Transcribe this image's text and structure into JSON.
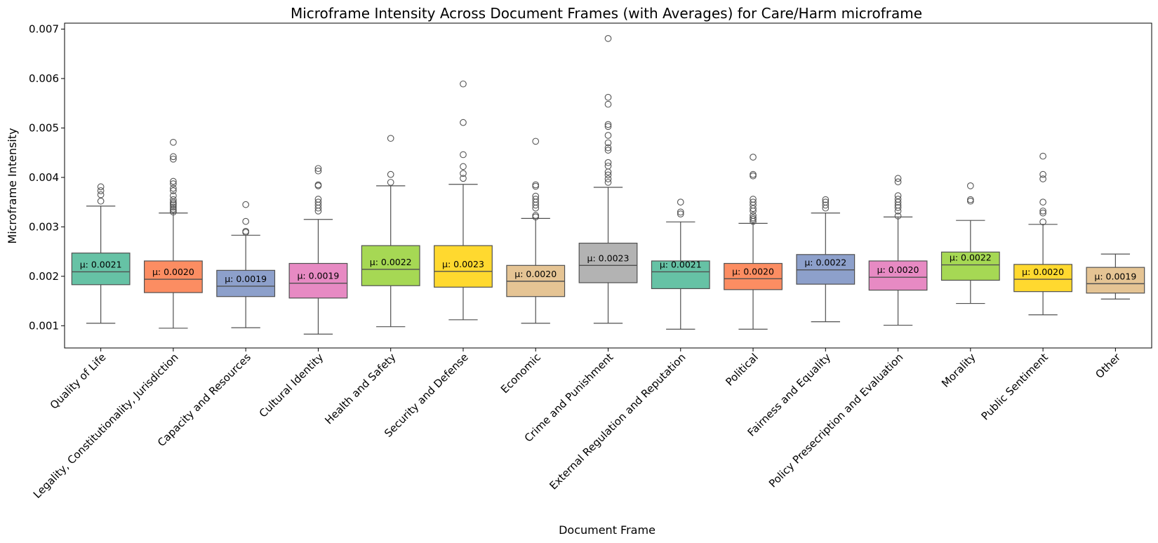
{
  "chart_data": {
    "type": "box",
    "title": "Microframe Intensity Across Document Frames (with Averages) for Care/Harm microframe",
    "xlabel": "Document Frame",
    "ylabel": "Microframe Intensity",
    "ylim": [
      0.00055,
      0.00712
    ],
    "yticks": [
      0.001,
      0.002,
      0.003,
      0.004,
      0.005,
      0.006,
      0.007
    ],
    "ytick_labels": [
      "0.001",
      "0.002",
      "0.003",
      "0.004",
      "0.005",
      "0.006",
      "0.007"
    ],
    "mean_prefix": "μ: ",
    "grid": false,
    "legend": "none",
    "categories": [
      {
        "name": "Quality of Life",
        "color": "#66c2a5",
        "whisker_low": 0.00105,
        "q1": 0.00183,
        "median": 0.00209,
        "q3": 0.00247,
        "whisker_high": 0.00342,
        "mean_label": "0.0021",
        "outliers": [
          0.00352,
          0.00365,
          0.00373,
          0.00381
        ]
      },
      {
        "name": "Legality, Constitutionality, Jurisdiction",
        "color": "#fc8d62",
        "whisker_low": 0.00095,
        "q1": 0.00167,
        "median": 0.00194,
        "q3": 0.00231,
        "whisker_high": 0.00328,
        "mean_label": "0.0020",
        "outliers": [
          0.0033,
          0.00333,
          0.00336,
          0.0034,
          0.00344,
          0.00347,
          0.0035,
          0.00355,
          0.00363,
          0.00373,
          0.00378,
          0.00387,
          0.00392,
          0.00437,
          0.00442,
          0.00471
        ]
      },
      {
        "name": "Capacity and Resources",
        "color": "#8da0cb",
        "whisker_low": 0.00096,
        "q1": 0.00159,
        "median": 0.0018,
        "q3": 0.00212,
        "whisker_high": 0.00283,
        "mean_label": "0.0019",
        "outliers": [
          0.00289,
          0.00291,
          0.00311,
          0.00345
        ]
      },
      {
        "name": "Cultural Identity",
        "color": "#e78ac3",
        "whisker_low": 0.00083,
        "q1": 0.00156,
        "median": 0.00186,
        "q3": 0.00226,
        "whisker_high": 0.00315,
        "mean_label": "0.0019",
        "outliers": [
          0.00332,
          0.00338,
          0.00344,
          0.0035,
          0.00356,
          0.00383,
          0.00385,
          0.00413,
          0.00418
        ]
      },
      {
        "name": "Health and Safety",
        "color": "#a6d854",
        "whisker_low": 0.00098,
        "q1": 0.00181,
        "median": 0.00214,
        "q3": 0.00262,
        "whisker_high": 0.00383,
        "mean_label": "0.0022",
        "outliers": [
          0.0039,
          0.00406,
          0.00479
        ]
      },
      {
        "name": "Security and Defense",
        "color": "#ffd92f",
        "whisker_low": 0.00112,
        "q1": 0.00178,
        "median": 0.0021,
        "q3": 0.00262,
        "whisker_high": 0.00386,
        "mean_label": "0.0023",
        "outliers": [
          0.00398,
          0.00408,
          0.00422,
          0.00446,
          0.00511,
          0.00589
        ]
      },
      {
        "name": "Economic",
        "color": "#e5c494",
        "whisker_low": 0.00105,
        "q1": 0.00159,
        "median": 0.0019,
        "q3": 0.00222,
        "whisker_high": 0.00317,
        "mean_label": "0.0020",
        "outliers": [
          0.0032,
          0.00323,
          0.00338,
          0.00344,
          0.0035,
          0.00356,
          0.00362,
          0.00382,
          0.00385,
          0.00473
        ]
      },
      {
        "name": "Crime and Punishment",
        "color": "#b3b3b3",
        "whisker_low": 0.00105,
        "q1": 0.00187,
        "median": 0.00222,
        "q3": 0.00267,
        "whisker_high": 0.0038,
        "mean_label": "0.0023",
        "outliers": [
          0.0039,
          0.00397,
          0.00405,
          0.00411,
          0.00423,
          0.0043,
          0.00455,
          0.0046,
          0.0047,
          0.00485,
          0.00503,
          0.00507,
          0.00548,
          0.00562,
          0.00681
        ]
      },
      {
        "name": "External Regulation and Reputation",
        "color": "#66c2a5",
        "whisker_low": 0.00093,
        "q1": 0.00175,
        "median": 0.00209,
        "q3": 0.00231,
        "whisker_high": 0.0031,
        "mean_label": "0.0021",
        "outliers": [
          0.00326,
          0.0033,
          0.0035
        ]
      },
      {
        "name": "Political",
        "color": "#fc8d62",
        "whisker_low": 0.00093,
        "q1": 0.00173,
        "median": 0.00195,
        "q3": 0.00226,
        "whisker_high": 0.00307,
        "mean_label": "0.0020",
        "outliers": [
          0.00311,
          0.00315,
          0.00318,
          0.00323,
          0.00332,
          0.00337,
          0.00344,
          0.0035,
          0.00356,
          0.00403,
          0.00406,
          0.00441
        ]
      },
      {
        "name": "Fairness and Equality",
        "color": "#8da0cb",
        "whisker_low": 0.00108,
        "q1": 0.00184,
        "median": 0.00213,
        "q3": 0.00244,
        "whisker_high": 0.00328,
        "mean_label": "0.0022",
        "outliers": [
          0.00338,
          0.00344,
          0.0035,
          0.00355
        ]
      },
      {
        "name": "Policy Presecription and Evaluation",
        "color": "#e78ac3",
        "whisker_low": 0.00101,
        "q1": 0.00172,
        "median": 0.00198,
        "q3": 0.00231,
        "whisker_high": 0.0032,
        "mean_label": "0.0020",
        "outliers": [
          0.00322,
          0.00332,
          0.00339,
          0.00344,
          0.0035,
          0.00356,
          0.00363,
          0.00391,
          0.00398
        ]
      },
      {
        "name": "Morality",
        "color": "#a6d854",
        "whisker_low": 0.00145,
        "q1": 0.00192,
        "median": 0.00223,
        "q3": 0.00249,
        "whisker_high": 0.00313,
        "mean_label": "0.0022",
        "outliers": [
          0.00352,
          0.00355,
          0.00383
        ]
      },
      {
        "name": "Public Sentiment",
        "color": "#ffd92f",
        "whisker_low": 0.00122,
        "q1": 0.00169,
        "median": 0.00194,
        "q3": 0.00224,
        "whisker_high": 0.00305,
        "mean_label": "0.0020",
        "outliers": [
          0.0031,
          0.00328,
          0.00332,
          0.0035,
          0.00397,
          0.00406,
          0.00443
        ]
      },
      {
        "name": "Other",
        "color": "#e5c494",
        "whisker_low": 0.00154,
        "q1": 0.00166,
        "median": 0.00185,
        "q3": 0.00218,
        "whisker_high": 0.00245,
        "mean_label": "0.0019",
        "outliers": []
      }
    ]
  }
}
